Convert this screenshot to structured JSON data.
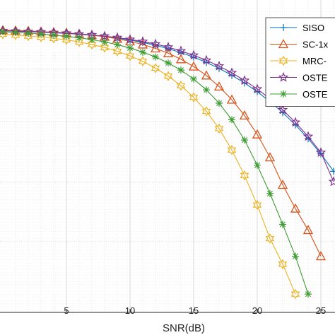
{
  "chart_data": {
    "type": "line",
    "xlabel": "SNR(dB)",
    "ylabel": "",
    "title": "",
    "xlim": [
      0,
      27
    ],
    "x_ticks": [
      "5",
      "10",
      "15",
      "20",
      "25"
    ],
    "grid": true,
    "legend_position": "top-right",
    "series": [
      {
        "name": "SISO",
        "color": "#0072BD",
        "marker": "plus",
        "x": [
          0,
          1,
          2,
          3,
          4,
          5,
          6,
          7,
          8,
          9,
          10,
          11,
          12,
          13,
          14,
          15,
          16,
          17,
          18,
          19,
          20,
          21,
          22,
          23,
          24,
          25,
          26
        ],
        "y": [
          0.995,
          0.992,
          0.99,
          0.988,
          0.985,
          0.982,
          0.978,
          0.973,
          0.967,
          0.96,
          0.95,
          0.939,
          0.925,
          0.909,
          0.89,
          0.868,
          0.843,
          0.814,
          0.781,
          0.744,
          0.702,
          0.655,
          0.602,
          0.543,
          0.477,
          0.404,
          0.32
        ]
      },
      {
        "name": "SC-1x",
        "color": "#D95319",
        "marker": "triangle",
        "x": [
          0,
          1,
          2,
          3,
          4,
          5,
          6,
          7,
          8,
          9,
          10,
          11,
          12,
          13,
          14,
          15,
          16,
          17,
          18,
          19,
          20,
          21,
          22,
          23,
          24,
          25
        ],
        "y": [
          0.998,
          0.996,
          0.994,
          0.991,
          0.988,
          0.985,
          0.98,
          0.974,
          0.966,
          0.956,
          0.944,
          0.929,
          0.91,
          0.887,
          0.858,
          0.823,
          0.78,
          0.727,
          0.664,
          0.588,
          0.497,
          0.387,
          0.255,
          0.141,
          0.038,
          -0.088
        ]
      },
      {
        "name": "MRC-",
        "color": "#EDB120",
        "marker": "hexagram",
        "x": [
          0,
          1,
          2,
          3,
          4,
          5,
          6,
          7,
          8,
          9,
          10,
          11,
          12,
          13,
          14,
          15,
          16,
          17,
          18,
          19,
          20,
          21,
          22,
          23
        ],
        "y": [
          0.978,
          0.974,
          0.969,
          0.964,
          0.958,
          0.951,
          0.941,
          0.929,
          0.914,
          0.896,
          0.874,
          0.848,
          0.815,
          0.777,
          0.731,
          0.675,
          0.608,
          0.525,
          0.422,
          0.3,
          0.158,
          -0.003,
          -0.126,
          -0.27
        ]
      },
      {
        "name": "OSTE",
        "color": "#7E2F8E",
        "marker": "pentagram",
        "x": [
          0,
          1,
          2,
          3,
          4,
          5,
          6,
          7,
          8,
          9,
          10,
          11,
          12,
          13,
          14,
          15,
          16,
          17,
          18,
          19,
          20,
          21,
          22,
          23,
          24,
          25,
          26
        ],
        "y": [
          0.995,
          0.993,
          0.991,
          0.989,
          0.986,
          0.983,
          0.979,
          0.975,
          0.969,
          0.962,
          0.953,
          0.943,
          0.931,
          0.916,
          0.898,
          0.877,
          0.853,
          0.825,
          0.793,
          0.756,
          0.715,
          0.668,
          0.615,
          0.555,
          0.487,
          0.41,
          0.27
        ]
      },
      {
        "name": "OSTE",
        "color": "#3D9C32",
        "marker": "asterisk",
        "x": [
          0,
          1,
          2,
          3,
          4,
          5,
          6,
          7,
          8,
          9,
          10,
          11,
          12,
          13,
          14,
          15,
          16,
          17,
          18,
          19,
          20,
          21,
          22,
          23,
          24
        ],
        "y": [
          0.99,
          0.987,
          0.983,
          0.979,
          0.974,
          0.968,
          0.961,
          0.952,
          0.941,
          0.928,
          0.912,
          0.892,
          0.869,
          0.84,
          0.806,
          0.763,
          0.711,
          0.647,
          0.568,
          0.47,
          0.349,
          0.213,
          0.065,
          -0.088,
          -0.27
        ]
      }
    ]
  }
}
